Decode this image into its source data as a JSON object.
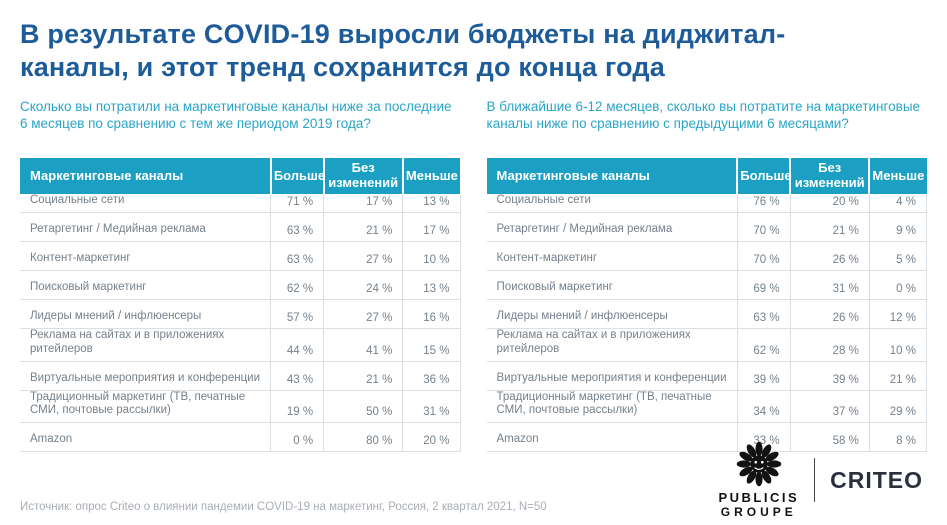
{
  "title": "В результате COVID-19 выросли бюджеты на диджитал-каналы, и этот тренд сохранится до конца года",
  "colors": {
    "title_blue": "#1e5c99",
    "accent_teal": "#1ba0c3",
    "question_teal": "#2aa5c7",
    "cell_text_gray": "#76818b",
    "source_gray": "#a9aeb6",
    "logo_dark": "#2b313c"
  },
  "tables": [
    {
      "question": "Сколько вы потратили на маркетинговые каналы ниже за последние 6 месяцев по сравнению с тем же периодом 2019 года?",
      "columns": [
        "Маркетинговые каналы",
        "Больше",
        "Без изменений",
        "Меньше"
      ],
      "rows": [
        [
          "Социальные сети",
          "71 %",
          "17 %",
          "13 %"
        ],
        [
          "Ретаргетинг / Медийная реклама",
          "63 %",
          "21 %",
          "17 %"
        ],
        [
          "Контент-маркетинг",
          "63 %",
          "27 %",
          "10 %"
        ],
        [
          "Поисковый маркетинг",
          "62 %",
          "24 %",
          "13 %"
        ],
        [
          "Лидеры мнений / инфлюенсеры",
          "57 %",
          "27 %",
          "16 %"
        ],
        [
          "Реклама на сайтах и в приложениях ритейлеров",
          "44 %",
          "41 %",
          "15 %"
        ],
        [
          "Виртуальные мероприятия и конференции",
          "43 %",
          "21 %",
          "36 %"
        ],
        [
          "Традиционный маркетинг (ТВ, печатные СМИ, почтовые рассылки)",
          "19 %",
          "50 %",
          "31 %"
        ],
        [
          "Amazon",
          "0 %",
          "80 %",
          "20 %"
        ]
      ]
    },
    {
      "question": "В ближайшие 6-12 месяцев, сколько вы потратите на маркетинговые каналы ниже по сравнению с предыдущими 6 месяцами?",
      "columns": [
        "Маркетинговые каналы",
        "Больше",
        "Без изменений",
        "Меньше"
      ],
      "rows": [
        [
          "Социальные сети",
          "76 %",
          "20 %",
          "4 %"
        ],
        [
          "Ретаргетинг / Медийная реклама",
          "70 %",
          "21 %",
          "9 %"
        ],
        [
          "Контент-маркетинг",
          "70 %",
          "26 %",
          "5 %"
        ],
        [
          "Поисковый маркетинг",
          "69 %",
          "31 %",
          "0 %"
        ],
        [
          "Лидеры мнений / инфлюенсеры",
          "63 %",
          "26 %",
          "12 %"
        ],
        [
          "Реклама на сайтах и в приложениях ритейлеров",
          "62 %",
          "28 %",
          "10 %"
        ],
        [
          "Виртуальные мероприятия и конференции",
          "39 %",
          "39 %",
          "21 %"
        ],
        [
          "Традиционный маркетинг (ТВ, печатные СМИ, почтовые рассылки)",
          "34 %",
          "37 %",
          "29 %"
        ],
        [
          "Amazon",
          "33 %",
          "58 %",
          "8 %"
        ]
      ]
    }
  ],
  "footer": {
    "source": "Источник: опрос Criteo о влиянии пандемии COVID-19 на маркетинг, Россия, 2 квартал 2021, N=50",
    "publicis_line1": "PUBLICIS",
    "publicis_line2": "GROUPE",
    "criteo_label": "CRITEO"
  }
}
